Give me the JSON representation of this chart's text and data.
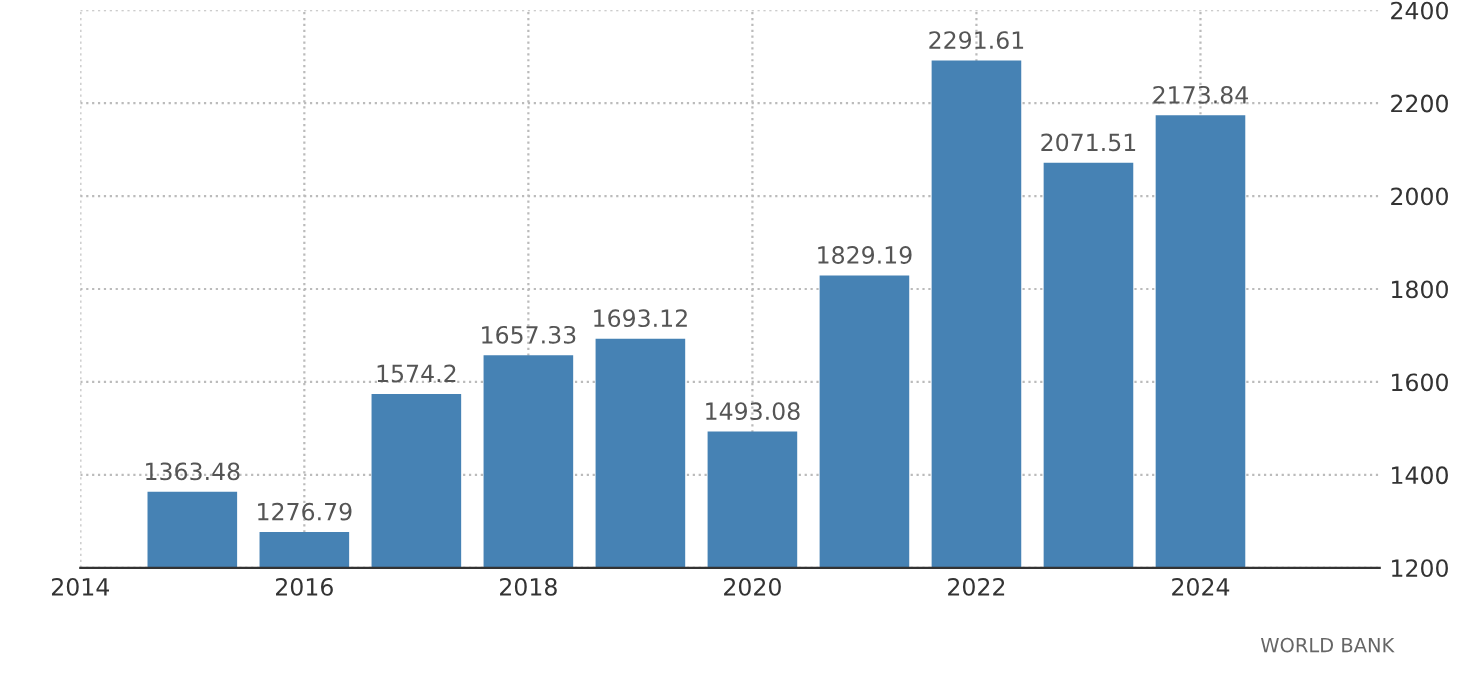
{
  "chart_data": {
    "type": "bar",
    "x": [
      2015,
      2016,
      2017,
      2018,
      2019,
      2020,
      2021,
      2022,
      2023,
      2024
    ],
    "values": [
      1363.48,
      1276.79,
      1574.2,
      1657.33,
      1693.12,
      1493.08,
      1829.19,
      2291.61,
      2071.51,
      2173.84
    ],
    "color": "#4682b4",
    "data_labels": true,
    "xlim": [
      2014,
      2025.6
    ],
    "xticks": [
      2014,
      2016,
      2018,
      2020,
      2022,
      2024
    ],
    "ylim": [
      1200,
      2400
    ],
    "yticks": [
      1200,
      1400,
      1600,
      1800,
      2000,
      2200,
      2400
    ],
    "grid": true,
    "annotations": [
      "WORLD BANK"
    ]
  }
}
